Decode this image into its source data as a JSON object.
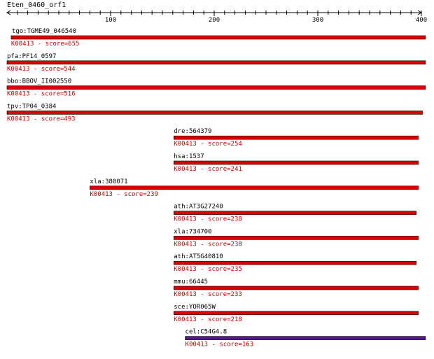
{
  "query": {
    "name": "Eten_0460_orf1"
  },
  "axis": {
    "ticks": [
      {
        "value": 100,
        "label": "100"
      },
      {
        "value": 200,
        "label": "200"
      },
      {
        "value": 300,
        "label": "300"
      },
      {
        "value": 400,
        "label": "400"
      }
    ],
    "min": 1,
    "max": 400
  },
  "colors": {
    "bar_red": "#dd0000",
    "bar_purple": "#551a8b",
    "score_text": "#cc0000",
    "label_text": "#000000",
    "axis": "#000000"
  },
  "hits": [
    {
      "name": "tgo:TGME49_046540",
      "ko": "K00413",
      "score_text": "K00413 - score=655",
      "score": 655,
      "start": 4,
      "end": 404,
      "color": "red"
    },
    {
      "name": "pfa:PF14_0597",
      "ko": "K00413",
      "score_text": "K00413 - score=544",
      "score": 544,
      "start": 0,
      "end": 404,
      "color": "red"
    },
    {
      "name": "bbo:BBOV_II002550",
      "ko": "K00413",
      "score_text": "K00413 - score=516",
      "score": 516,
      "start": 0,
      "end": 404,
      "color": "red"
    },
    {
      "name": "tpv:TP04_0384",
      "ko": "K00413",
      "score_text": "K00413 - score=493",
      "score": 493,
      "start": 0,
      "end": 401,
      "color": "red"
    },
    {
      "name": "dre:564379",
      "ko": "K00413",
      "score_text": "K00413 - score=254",
      "score": 254,
      "start": 161,
      "end": 397,
      "color": "red"
    },
    {
      "name": "hsa:1537",
      "ko": "K00413",
      "score_text": "K00413 - score=241",
      "score": 241,
      "start": 161,
      "end": 397,
      "color": "red"
    },
    {
      "name": "xla:380071",
      "ko": "K00413",
      "score_text": "K00413 - score=239",
      "score": 239,
      "start": 80,
      "end": 397,
      "color": "red"
    },
    {
      "name": "ath:AT3G27240",
      "ko": "K00413",
      "score_text": "K00413 - score=238",
      "score": 238,
      "start": 161,
      "end": 395,
      "color": "red"
    },
    {
      "name": "xla:734700",
      "ko": "K00413",
      "score_text": "K00413 - score=238",
      "score": 238,
      "start": 161,
      "end": 397,
      "color": "red"
    },
    {
      "name": "ath:AT5G40810",
      "ko": "K00413",
      "score_text": "K00413 - score=235",
      "score": 235,
      "start": 161,
      "end": 395,
      "color": "red"
    },
    {
      "name": "mmu:66445",
      "ko": "K00413",
      "score_text": "K00413 - score=233",
      "score": 233,
      "start": 161,
      "end": 397,
      "color": "red"
    },
    {
      "name": "sce:YOR065W",
      "ko": "K00413",
      "score_text": "K00413 - score=218",
      "score": 218,
      "start": 161,
      "end": 397,
      "color": "red"
    },
    {
      "name": "cel:C54G4.8",
      "ko": "K00413",
      "score_text": "K00413 - score=163",
      "score": 163,
      "start": 172,
      "end": 404,
      "color": "purple"
    }
  ]
}
